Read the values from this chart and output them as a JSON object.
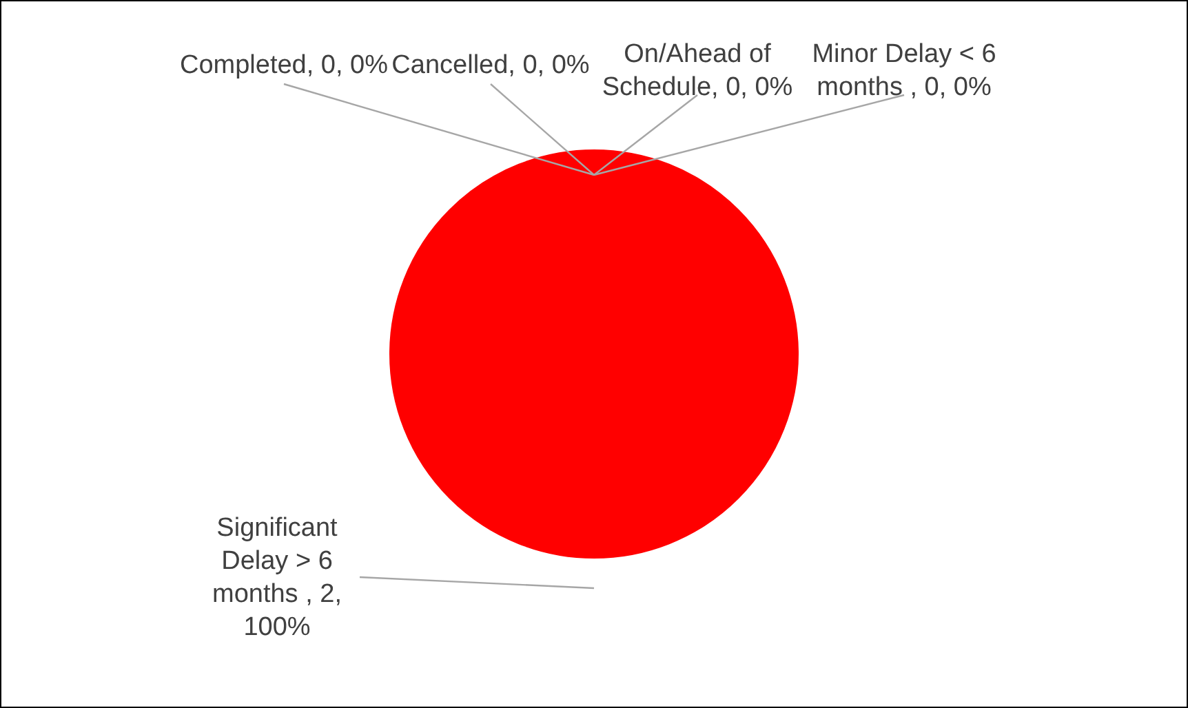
{
  "chart_data": {
    "type": "pie",
    "categories": [
      "Completed",
      "Cancelled",
      "On/Ahead of Schedule",
      "Minor Delay < 6 months ",
      "Significant Delay > 6 months "
    ],
    "values": [
      0,
      0,
      0,
      0,
      2
    ],
    "colors": [
      "#00b050",
      "#7f7f7f",
      "#0070c0",
      "#ffc000",
      "#ff0000"
    ],
    "value_labels": [
      ", 0, 0%",
      ", 0, 0%",
      ", 0, 0%",
      ", 0, 0%",
      ", 2, 100%"
    ]
  }
}
